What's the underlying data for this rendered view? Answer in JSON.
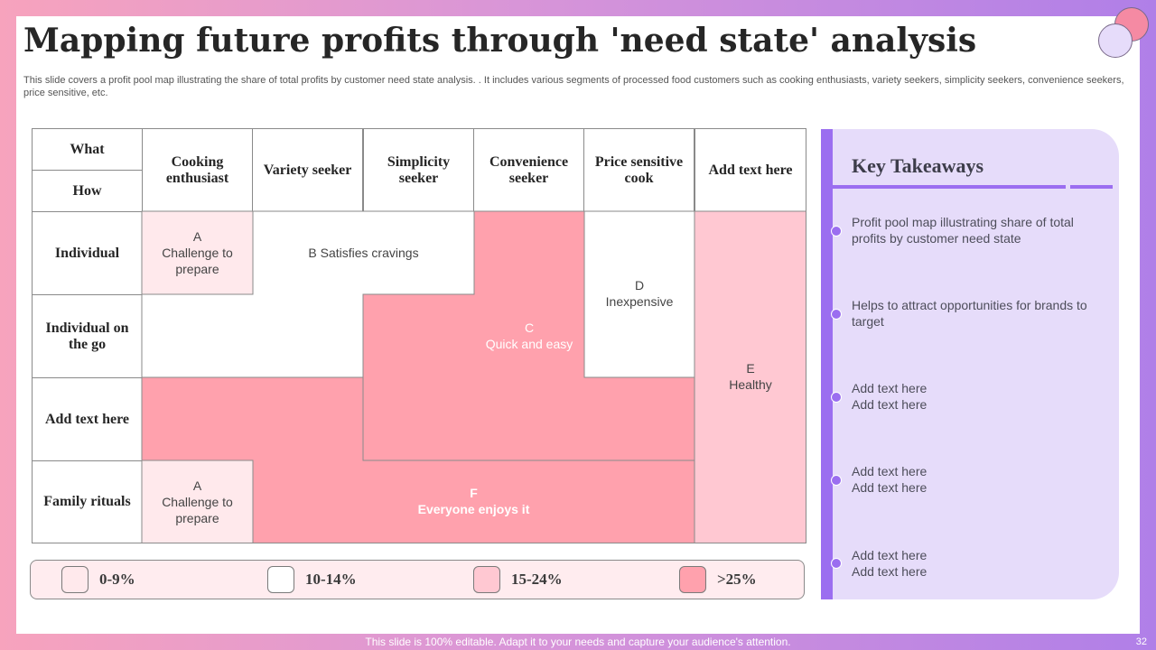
{
  "slide": {
    "title": "Mapping future profits through 'need state' analysis",
    "subtitle": "This slide covers a profit pool map illustrating the share of total profits by customer need state analysis. . It includes various segments of processed food customers such as cooking enthusiasts, variety seekers, simplicity seekers, convenience seekers, price sensitive, etc."
  },
  "map": {
    "corner_top": "What",
    "corner_bottom": "How",
    "columns": [
      "Cooking enthusiast",
      "Variety seeker",
      "Simplicity seeker",
      "Convenience seeker",
      "Price sensitive cook",
      "Add text here"
    ],
    "rows": [
      "Individual",
      "Individual on the go",
      "Add text here",
      "Family rituals"
    ],
    "zones": {
      "a_top": "A\nChallenge to\nprepare",
      "b": "B Satisfies cravings",
      "c": "C\nQuick and easy",
      "d": "D\nInexpensive",
      "e": "E\nHealthy",
      "f": "F\nEveryone enjoys it",
      "a_bottom": "A\nChallenge to\nprepare"
    }
  },
  "legend": [
    {
      "label": "0-9%",
      "color": "#ffe9ec"
    },
    {
      "label": "10-14%",
      "color": "#ffffff"
    },
    {
      "label": "15-24%",
      "color": "#ffc8d2"
    },
    {
      "label": ">25%",
      "color": "#ffa1ad"
    }
  ],
  "takeaways": {
    "title": "Key Takeaways",
    "items": [
      "Profit pool map illustrating share of total profits by customer need state",
      "Helps to attract opportunities for brands to target",
      "Add text here\nAdd text here",
      "Add text here\nAdd text here",
      "Add text here\nAdd text here"
    ]
  },
  "footer": {
    "text": "This slide is 100% editable. Adapt it to your needs and capture your audience's attention.",
    "page_number": "32"
  }
}
